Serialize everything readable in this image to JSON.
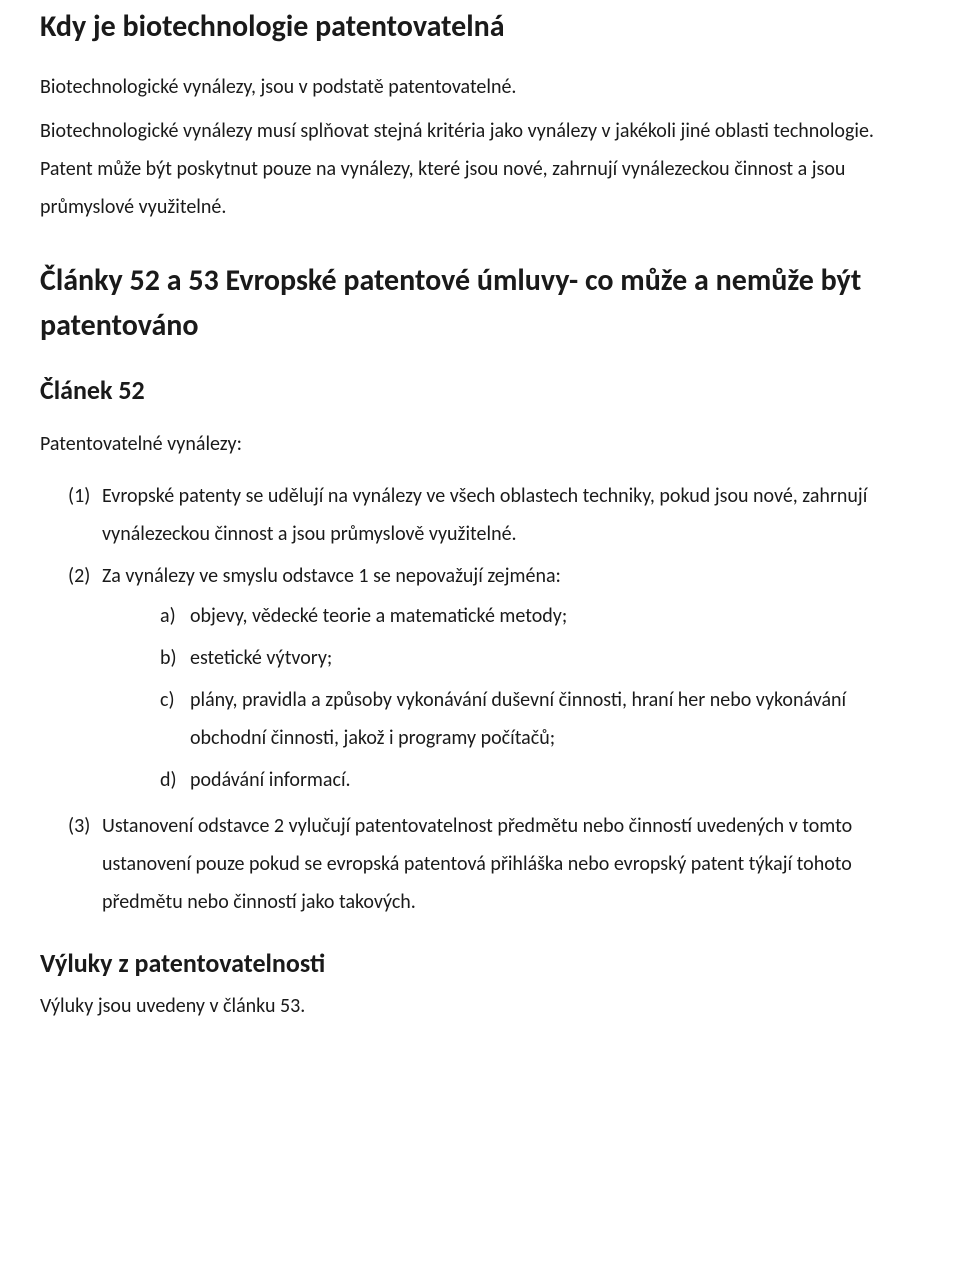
{
  "colors": {
    "text": "#1a1a1a",
    "background": "#ffffff"
  },
  "typography": {
    "h1_fontsize": 30,
    "h1_weight": 700,
    "h2_fontsize": 30,
    "h2_weight": 700,
    "h3_fontsize": 26,
    "h3_weight": 700,
    "h4_fontsize": 26,
    "h4_weight": 700,
    "body_fontsize": 20,
    "line_height": 1.9,
    "font_family": "Calibri"
  },
  "doc": {
    "title1": "Kdy je biotechnologie patentovatelná",
    "intro1": "Biotechnologické vynálezy, jsou v podstatě patentovatelné.",
    "intro2": "Biotechnologické vynálezy musí splňovat stejná kritéria jako vynálezy v jakékoli jiné oblasti technologie. Patent může být poskytnut pouze na vynálezy, které jsou nové, zahrnují vynálezeckou činnost a jsou průmyslové využitelné.",
    "title2": "Články 52 a 53 Evropské patentové úmluvy- co může a nemůže být patentováno",
    "title3": "Článek 52",
    "sub3": "Patentovatelné vynálezy:",
    "list1": {
      "items": [
        {
          "marker": "(1)",
          "text": "Evropské patenty se udělují na vynálezy ve všech oblastech techniky, pokud jsou nové, zahrnují vynálezeckou činnost a jsou průmyslově využitelné."
        },
        {
          "marker": "(2)",
          "text": "Za vynálezy ve smyslu odstavce 1 se nepovažují zejména:",
          "sub": [
            {
              "marker": "a)",
              "text": "objevy, vědecké teorie a matematické metody;"
            },
            {
              "marker": "b)",
              "text": "estetické výtvory;"
            },
            {
              "marker": "c)",
              "text": "plány, pravidla a způsoby vykonávání duševní činnosti, hraní her nebo vykonávání obchodní činnosti, jakož i programy počítačů;"
            },
            {
              "marker": "d)",
              "text": "podávání informací."
            }
          ]
        },
        {
          "marker": "(3)",
          "text": "Ustanovení odstavce 2 vylučují patentovatelnost předmětu nebo činností uvedených v tomto ustanovení pouze pokud se evropská patentová přihláška nebo evropský patent týkají tohoto předmětu nebo činností jako takových."
        }
      ]
    },
    "title4": "Výluky z patentovatelnosti",
    "closing": "Výluky jsou uvedeny v článku 53."
  }
}
